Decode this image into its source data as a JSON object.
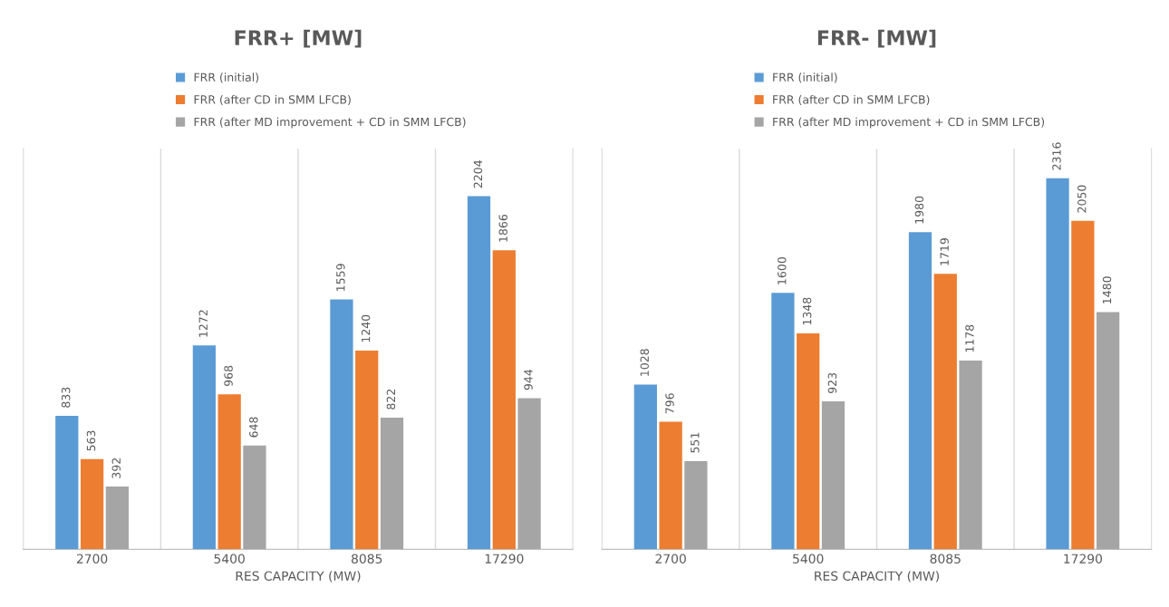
{
  "chart_data": [
    {
      "type": "bar",
      "title": "FRR+ [MW]",
      "xlabel": "RES CAPACITY (MW)",
      "categories": [
        "2700",
        "5400",
        "8085",
        "17290"
      ],
      "series": [
        {
          "name": "FRR (initial)",
          "color": "#5b9bd5",
          "values": [
            833,
            1272,
            1559,
            2204
          ]
        },
        {
          "name": "FRR (after CD in SMM LFCB)",
          "color": "#ed7d31",
          "values": [
            563,
            968,
            1240,
            1866
          ]
        },
        {
          "name": "FRR (after MD improvement + CD in SMM LFCB)",
          "color": "#a5a5a5",
          "values": [
            392,
            648,
            822,
            944
          ]
        }
      ],
      "ylim": [
        0,
        2500
      ],
      "tick_labels": "x",
      "data_labels": true,
      "grid": "x",
      "legend": "top"
    },
    {
      "type": "bar",
      "title": "FRR- [MW]",
      "xlabel": "RES CAPACITY (MW)",
      "categories": [
        "2700",
        "5400",
        "8085",
        "17290"
      ],
      "series": [
        {
          "name": "FRR (initial)",
          "color": "#5b9bd5",
          "values": [
            1028,
            1600,
            1980,
            2316
          ]
        },
        {
          "name": "FRR (after CD in SMM LFCB)",
          "color": "#ed7d31",
          "values": [
            796,
            1348,
            1719,
            2050
          ]
        },
        {
          "name": "FRR (after MD improvement + CD in SMM LFCB)",
          "color": "#a5a5a5",
          "values": [
            551,
            923,
            1178,
            1480
          ]
        }
      ],
      "ylim": [
        0,
        2500
      ],
      "tick_labels": "x",
      "data_labels": true,
      "grid": "x",
      "legend": "top"
    }
  ]
}
